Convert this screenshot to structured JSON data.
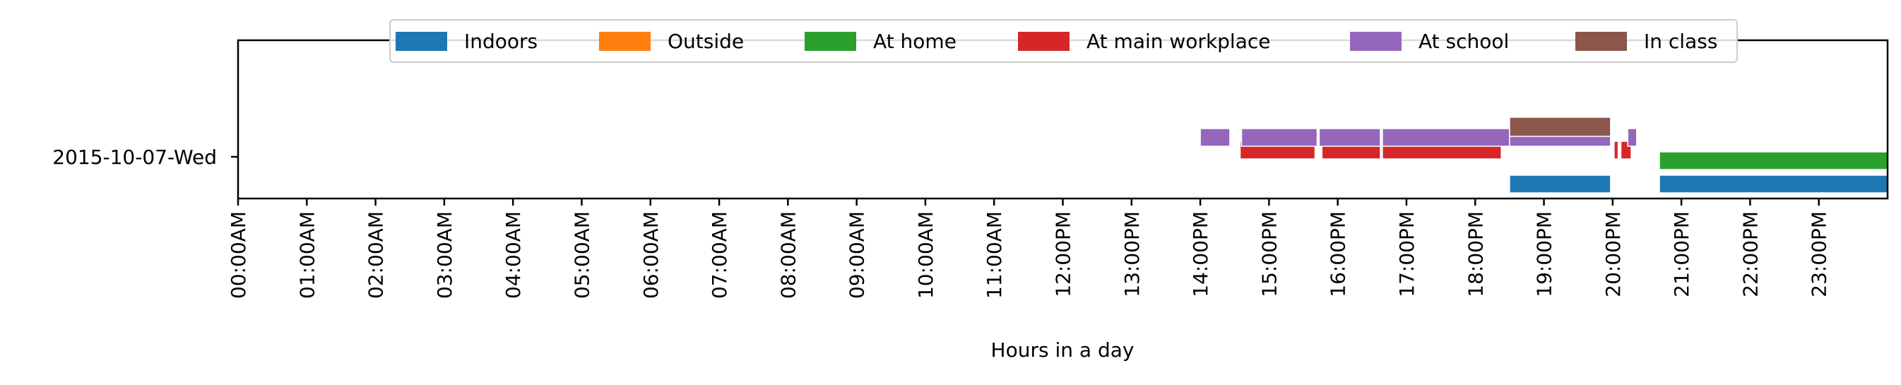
{
  "chart_data": {
    "type": "timeline",
    "title": "",
    "xlabel": "Hours in a day",
    "ylabel": "",
    "xlim": [
      0,
      24
    ],
    "x_tick_labels": [
      "00:00AM",
      "01:00AM",
      "02:00AM",
      "03:00AM",
      "04:00AM",
      "05:00AM",
      "06:00AM",
      "07:00AM",
      "08:00AM",
      "09:00AM",
      "10:00AM",
      "11:00AM",
      "12:00PM",
      "13:00PM",
      "14:00PM",
      "15:00PM",
      "16:00PM",
      "17:00PM",
      "18:00PM",
      "19:00PM",
      "20:00PM",
      "21:00PM",
      "22:00PM",
      "23:00PM"
    ],
    "categories": [
      "2015-10-07-Wed"
    ],
    "legend_position": "top-center",
    "grid": false,
    "series": [
      {
        "name": "Indoors",
        "color": "#1f77b4",
        "intervals": [
          [
            18.5,
            19.97
          ],
          [
            20.68,
            24.0
          ]
        ]
      },
      {
        "name": "Outside",
        "color": "#ff7f0e",
        "intervals": []
      },
      {
        "name": "At home",
        "color": "#2ca02c",
        "intervals": [
          [
            20.68,
            24.0
          ]
        ]
      },
      {
        "name": "At main workplace",
        "color": "#d62728",
        "intervals": [
          [
            14.58,
            15.67
          ],
          [
            15.77,
            16.62
          ],
          [
            16.65,
            18.38
          ],
          [
            20.02,
            20.08
          ],
          [
            20.12,
            20.27
          ]
        ]
      },
      {
        "name": "At school",
        "color": "#9467bd",
        "intervals": [
          [
            14.0,
            14.43
          ],
          [
            14.6,
            15.7
          ],
          [
            15.73,
            16.62
          ],
          [
            16.65,
            18.5
          ],
          [
            18.5,
            19.97
          ],
          [
            20.22,
            20.35
          ]
        ]
      },
      {
        "name": "In class",
        "color": "#8c564b",
        "intervals": [
          [
            18.5,
            19.97
          ]
        ]
      }
    ]
  }
}
